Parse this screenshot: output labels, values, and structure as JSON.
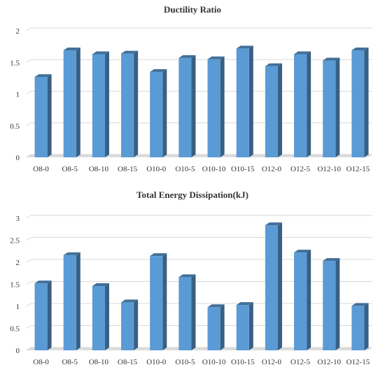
{
  "chart_data": [
    {
      "type": "bar",
      "title": "Ductility Ratio",
      "categories": [
        "O8-0",
        "O8-5",
        "O8-10",
        "O8-15",
        "O10-0",
        "O10-5",
        "O10-10",
        "O10-15",
        "O12-0",
        "O12-5",
        "O12-10",
        "O12-15"
      ],
      "values": [
        1.27,
        1.69,
        1.63,
        1.64,
        1.35,
        1.57,
        1.55,
        1.72,
        1.44,
        1.63,
        1.53,
        1.69
      ],
      "xlabel": "",
      "ylabel": "",
      "ylim": [
        0,
        2
      ],
      "yticks": [
        "0",
        "0.5",
        "1",
        "1.5",
        "2"
      ],
      "grid": true,
      "legend": "none",
      "bar_color": "#5b9bd5",
      "style": "3d-column"
    },
    {
      "type": "bar",
      "title": "Total Energy Dissipation(kJ)",
      "categories": [
        "O8-0",
        "O8-5",
        "O8-10",
        "O8-15",
        "O10-0",
        "O10-5",
        "O10-10",
        "O10-15",
        "O12-0",
        "O12-5",
        "O12-10",
        "O12-15"
      ],
      "values": [
        1.52,
        2.16,
        1.46,
        1.09,
        2.14,
        1.66,
        0.98,
        1.03,
        2.84,
        2.22,
        2.03,
        1.01
      ],
      "xlabel": "",
      "ylabel": "",
      "ylim": [
        0,
        3
      ],
      "yticks": [
        "0",
        "0.5",
        "1",
        "1.5",
        "2",
        "2.5",
        "3"
      ],
      "grid": true,
      "legend": "none",
      "bar_color": "#5b9bd5",
      "style": "3d-column"
    }
  ]
}
